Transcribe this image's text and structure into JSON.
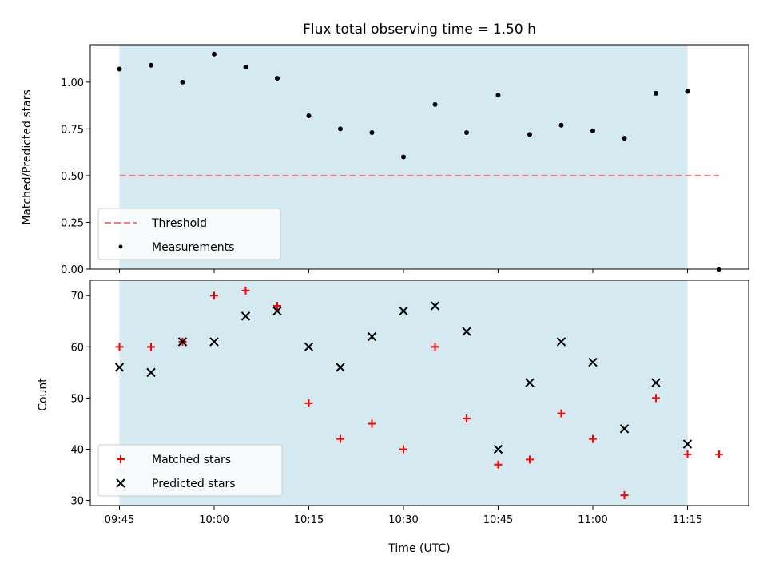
{
  "chart_data": [
    {
      "type": "scatter",
      "title": "Flux total observing time = 1.50 h",
      "xlabel": "",
      "ylabel": "Matched/Predicted stars",
      "ylim": [
        0.0,
        1.2
      ],
      "yticks": [
        "0.00",
        "0.25",
        "0.50",
        "0.75",
        "1.00"
      ],
      "shaded_span": {
        "start": "09:45",
        "end": "11:15",
        "color": "#d4eaf0"
      },
      "legend_position": "lower-left",
      "series": [
        {
          "name": "Threshold",
          "kind": "dashed-line",
          "color": "#f08080",
          "x": [
            "09:45",
            "11:20"
          ],
          "y": [
            0.5,
            0.5
          ]
        },
        {
          "name": "Measurements",
          "kind": "dot",
          "color": "#000000",
          "x": [
            "09:45",
            "09:50",
            "09:55",
            "10:00",
            "10:05",
            "10:10",
            "10:15",
            "10:20",
            "10:25",
            "10:30",
            "10:35",
            "10:40",
            "10:45",
            "10:50",
            "10:55",
            "11:00",
            "11:05",
            "11:10",
            "11:15",
            "11:20"
          ],
          "y": [
            1.07,
            1.09,
            1.0,
            1.15,
            1.08,
            1.02,
            0.82,
            0.75,
            0.73,
            0.6,
            0.88,
            0.73,
            0.93,
            0.72,
            0.77,
            0.74,
            0.7,
            0.94,
            0.95,
            0.0
          ]
        }
      ]
    },
    {
      "type": "scatter",
      "title": "",
      "xlabel": "Time (UTC)",
      "ylabel": "Count",
      "ylim": [
        29,
        73
      ],
      "yticks": [
        "30",
        "40",
        "50",
        "60",
        "70"
      ],
      "xticks": [
        "09:45",
        "10:00",
        "10:15",
        "10:30",
        "10:45",
        "11:00",
        "11:15"
      ],
      "shaded_span": {
        "start": "09:45",
        "end": "11:15",
        "color": "#d4eaf0"
      },
      "legend_position": "lower-left",
      "series": [
        {
          "name": "Matched stars",
          "kind": "plus",
          "color": "#ff0000",
          "x": [
            "09:45",
            "09:50",
            "09:55",
            "10:00",
            "10:05",
            "10:10",
            "10:15",
            "10:20",
            "10:25",
            "10:30",
            "10:35",
            "10:40",
            "10:45",
            "10:50",
            "10:55",
            "11:00",
            "11:05",
            "11:10",
            "11:15",
            "11:20"
          ],
          "y": [
            60,
            60,
            61,
            70,
            71,
            68,
            49,
            42,
            45,
            40,
            60,
            46,
            37,
            38,
            47,
            42,
            31,
            50,
            39,
            39
          ]
        },
        {
          "name": "Predicted stars",
          "kind": "cross",
          "color": "#000000",
          "x": [
            "09:45",
            "09:50",
            "09:55",
            "10:00",
            "10:05",
            "10:10",
            "10:15",
            "10:20",
            "10:25",
            "10:30",
            "10:35",
            "10:40",
            "10:45",
            "10:50",
            "10:55",
            "11:00",
            "11:05",
            "11:10",
            "11:15"
          ],
          "y": [
            56,
            55,
            61,
            61,
            66,
            67,
            60,
            56,
            62,
            67,
            68,
            63,
            40,
            53,
            61,
            57,
            44,
            53,
            41
          ]
        }
      ]
    }
  ]
}
